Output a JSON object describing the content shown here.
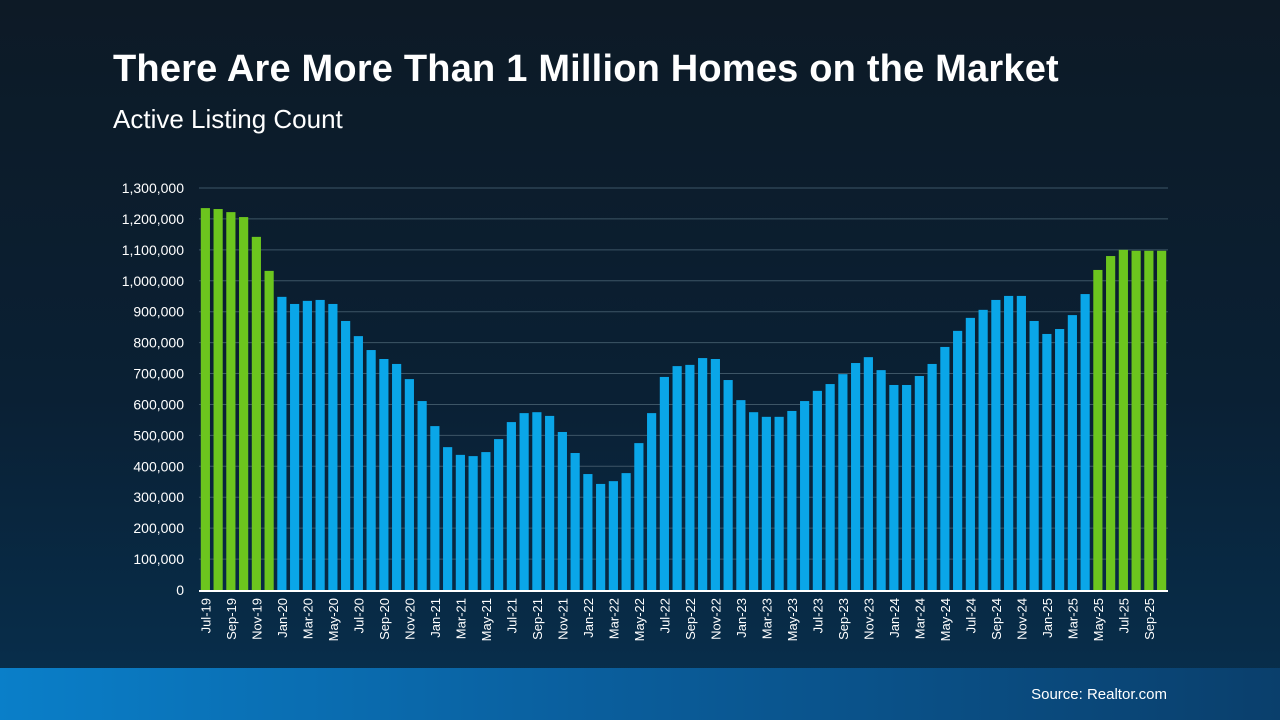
{
  "title": "There Are More Than 1 Million Homes on the Market",
  "subtitle": "Active Listing Count",
  "source": "Source: Realtor.com",
  "colors": {
    "blue": "#0aa6e8",
    "green": "#6cc51e",
    "grid": "#3d5566",
    "axis": "#ffffff"
  },
  "chart_data": {
    "type": "bar",
    "title": "There Are More Than 1 Million Homes on the Market",
    "subtitle": "Active Listing Count",
    "xlabel": "",
    "ylabel": "",
    "ylim": [
      0,
      1300000
    ],
    "yticks": [
      0,
      100000,
      200000,
      300000,
      400000,
      500000,
      600000,
      700000,
      800000,
      900000,
      1000000,
      1100000,
      1200000,
      1300000
    ],
    "ytick_labels": [
      "0",
      "100,000",
      "200,000",
      "300,000",
      "400,000",
      "500,000",
      "600,000",
      "700,000",
      "800,000",
      "900,000",
      "1,000,000",
      "1,100,000",
      "1,200,000",
      "1,300,000"
    ],
    "grid": true,
    "categories": [
      "Jul-19",
      "Aug-19",
      "Sep-19",
      "Oct-19",
      "Nov-19",
      "Dec-19",
      "Jan-20",
      "Feb-20",
      "Mar-20",
      "Apr-20",
      "May-20",
      "Jun-20",
      "Jul-20",
      "Aug-20",
      "Sep-20",
      "Oct-20",
      "Nov-20",
      "Dec-20",
      "Jan-21",
      "Feb-21",
      "Mar-21",
      "Apr-21",
      "May-21",
      "Jun-21",
      "Jul-21",
      "Aug-21",
      "Sep-21",
      "Oct-21",
      "Nov-21",
      "Dec-21",
      "Jan-22",
      "Feb-22",
      "Mar-22",
      "Apr-22",
      "May-22",
      "Jun-22",
      "Jul-22",
      "Aug-22",
      "Sep-22",
      "Oct-22",
      "Nov-22",
      "Dec-22",
      "Jan-23",
      "Feb-23",
      "Mar-23",
      "Apr-23",
      "May-23",
      "Jun-23",
      "Jul-23",
      "Aug-23",
      "Sep-23",
      "Oct-23",
      "Nov-23",
      "Dec-23",
      "Jan-24",
      "Feb-24",
      "Mar-24",
      "Apr-24",
      "May-24",
      "Jun-24",
      "Jul-24",
      "Aug-24",
      "Sep-24",
      "Oct-24",
      "Nov-24",
      "Dec-24",
      "Jan-25",
      "Feb-25",
      "Mar-25",
      "Apr-25",
      "May-25",
      "Jun-25",
      "Jul-25",
      "Aug-25",
      "Sep-25",
      "Oct-25"
    ],
    "shown_tick_labels": [
      "Jul-19",
      "Sep-19",
      "Nov-19",
      "Jan-20",
      "Mar-20",
      "May-20",
      "Jul-20",
      "Sep-20",
      "Nov-20",
      "Jan-21",
      "Mar-21",
      "May-21",
      "Jul-21",
      "Sep-21",
      "Nov-21",
      "Jan-22",
      "Mar-22",
      "May-22",
      "Jul-22",
      "Sep-22",
      "Nov-22",
      "Jan-23",
      "Mar-23",
      "May-23",
      "Jul-23",
      "Sep-23",
      "Nov-23",
      "Jan-24",
      "Mar-24",
      "May-24",
      "Jul-24",
      "Sep-24",
      "Nov-24",
      "Jan-25",
      "Mar-25",
      "May-25",
      "Jul-25",
      "Sep-25"
    ],
    "values": [
      1235000,
      1232000,
      1222000,
      1206000,
      1142000,
      1032000,
      948000,
      925000,
      935000,
      938000,
      925000,
      870000,
      821000,
      776000,
      747000,
      731000,
      682000,
      611000,
      530000,
      462000,
      437000,
      433000,
      446000,
      488000,
      543000,
      572000,
      575000,
      563000,
      511000,
      443000,
      375000,
      343000,
      352000,
      378000,
      475000,
      572000,
      689000,
      724000,
      728000,
      750000,
      747000,
      679000,
      614000,
      575000,
      560000,
      560000,
      579000,
      611000,
      644000,
      666000,
      698000,
      734000,
      753000,
      711000,
      663000,
      663000,
      692000,
      731000,
      786000,
      838000,
      880000,
      906000,
      938000,
      951000,
      951000,
      870000,
      828000,
      844000,
      889000,
      957000,
      1035000,
      1080000,
      1100000,
      1097000,
      1097000,
      1097000
    ],
    "highlight_green": [
      "Jul-19",
      "Aug-19",
      "Sep-19",
      "Oct-19",
      "Nov-19",
      "Dec-19",
      "May-25",
      "Jun-25",
      "Jul-25",
      "Aug-25",
      "Sep-25",
      "Oct-25"
    ]
  }
}
